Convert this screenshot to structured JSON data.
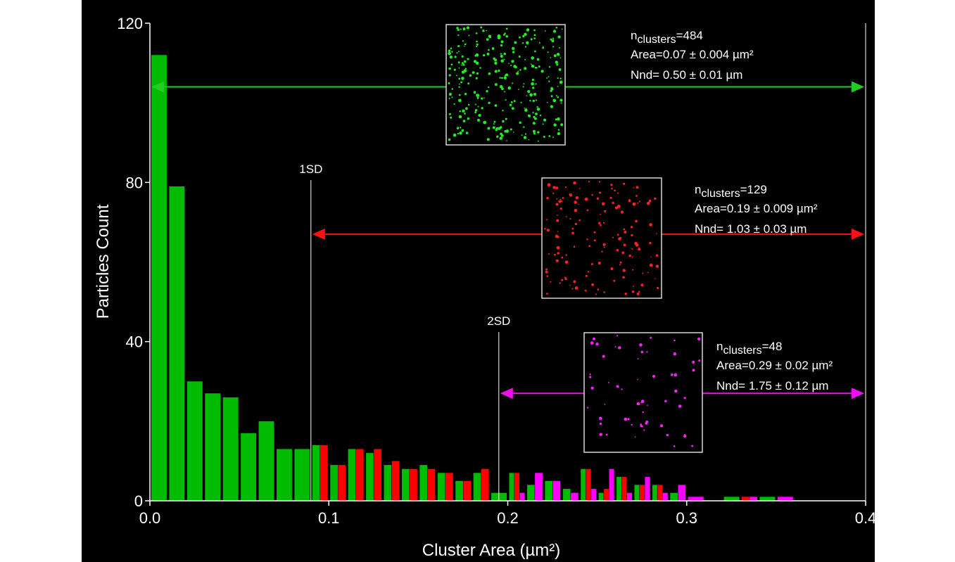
{
  "chart_data": {
    "type": "bar",
    "xlabel": "Cluster Area (µm²)",
    "ylabel": "Particles Count",
    "xlim": [
      0,
      0.4
    ],
    "ylim": [
      0,
      120
    ],
    "x_ticks": [
      "0.0",
      "0.1",
      "0.2",
      "0.3",
      "0.4"
    ],
    "y_ticks": [
      "0",
      "40",
      "80",
      "120"
    ],
    "bin_width": 0.01,
    "series": [
      {
        "color": "#00bb00",
        "bins": [
          {
            "x": 0.0,
            "y": 112
          },
          {
            "x": 0.01,
            "y": 79
          },
          {
            "x": 0.02,
            "y": 30
          },
          {
            "x": 0.03,
            "y": 27
          },
          {
            "x": 0.04,
            "y": 26
          },
          {
            "x": 0.05,
            "y": 17
          },
          {
            "x": 0.06,
            "y": 20
          },
          {
            "x": 0.07,
            "y": 13
          },
          {
            "x": 0.08,
            "y": 13
          },
          {
            "x": 0.09,
            "y": 14
          },
          {
            "x": 0.1,
            "y": 9
          },
          {
            "x": 0.11,
            "y": 13
          },
          {
            "x": 0.12,
            "y": 12
          },
          {
            "x": 0.13,
            "y": 9
          },
          {
            "x": 0.14,
            "y": 8
          },
          {
            "x": 0.15,
            "y": 9
          },
          {
            "x": 0.16,
            "y": 7
          },
          {
            "x": 0.17,
            "y": 5
          },
          {
            "x": 0.18,
            "y": 7
          },
          {
            "x": 0.19,
            "y": 2
          },
          {
            "x": 0.2,
            "y": 7
          },
          {
            "x": 0.21,
            "y": 4
          },
          {
            "x": 0.22,
            "y": 5
          },
          {
            "x": 0.23,
            "y": 3
          },
          {
            "x": 0.24,
            "y": 8
          },
          {
            "x": 0.25,
            "y": 2
          },
          {
            "x": 0.26,
            "y": 6
          },
          {
            "x": 0.27,
            "y": 4
          },
          {
            "x": 0.28,
            "y": 4
          },
          {
            "x": 0.29,
            "y": 2
          },
          {
            "x": 0.32,
            "y": 1
          },
          {
            "x": 0.34,
            "y": 1
          }
        ]
      },
      {
        "color": "#ff0000",
        "bins": [
          {
            "x": 0.09,
            "y": 14
          },
          {
            "x": 0.1,
            "y": 9
          },
          {
            "x": 0.11,
            "y": 13
          },
          {
            "x": 0.12,
            "y": 13
          },
          {
            "x": 0.13,
            "y": 10
          },
          {
            "x": 0.14,
            "y": 8
          },
          {
            "x": 0.15,
            "y": 8
          },
          {
            "x": 0.16,
            "y": 7
          },
          {
            "x": 0.17,
            "y": 5
          },
          {
            "x": 0.18,
            "y": 8
          },
          {
            "x": 0.2,
            "y": 7
          },
          {
            "x": 0.24,
            "y": 8
          },
          {
            "x": 0.25,
            "y": 3
          },
          {
            "x": 0.26,
            "y": 6
          },
          {
            "x": 0.27,
            "y": 4
          },
          {
            "x": 0.28,
            "y": 4
          },
          {
            "x": 0.33,
            "y": 1
          }
        ]
      },
      {
        "color": "#ff00ff",
        "bins": [
          {
            "x": 0.2,
            "y": 2
          },
          {
            "x": 0.21,
            "y": 7
          },
          {
            "x": 0.22,
            "y": 5
          },
          {
            "x": 0.23,
            "y": 2
          },
          {
            "x": 0.24,
            "y": 3
          },
          {
            "x": 0.25,
            "y": 8
          },
          {
            "x": 0.26,
            "y": 2
          },
          {
            "x": 0.27,
            "y": 6
          },
          {
            "x": 0.28,
            "y": 2
          },
          {
            "x": 0.29,
            "y": 4
          },
          {
            "x": 0.3,
            "y": 1
          },
          {
            "x": 0.33,
            "y": 1
          },
          {
            "x": 0.35,
            "y": 1
          }
        ]
      }
    ],
    "reference_lines": [
      {
        "x": 0.4,
        "label": ""
      },
      {
        "x": 0.09,
        "label": "1SD"
      },
      {
        "x": 0.195,
        "label": "2SD"
      }
    ],
    "range_arrows": [
      {
        "color": "#22cc22",
        "from": 0.0,
        "to": 0.4,
        "y": 104
      },
      {
        "color": "#ff1111",
        "from": 0.09,
        "to": 0.4,
        "y": 67
      },
      {
        "color": "#ee11ee",
        "from": 0.195,
        "to": 0.4,
        "y": 27
      }
    ],
    "annotations": [
      {
        "n_prefix": "n",
        "n_sub": "clusters",
        "n_value": "=484",
        "area": "Area=0.07 ± 0.004 µm²",
        "nnd": "Nnd= 0.50 ± 0.01 µm"
      },
      {
        "n_prefix": "n",
        "n_sub": "clusters",
        "n_value": "=129",
        "area": "Area=0.19 ± 0.009 µm²",
        "nnd": "Nnd= 1.03 ± 0.03 µm"
      },
      {
        "n_prefix": "n",
        "n_sub": "clusters",
        "n_value": "=48",
        "area": "Area=0.29 ± 0.02 µm²",
        "nnd": "Nnd= 1.75 ± 0.12 µm"
      }
    ],
    "insets": [
      {
        "color": "#22ee22",
        "dots": 300
      },
      {
        "color": "#ff2222",
        "dots": 150
      },
      {
        "color": "#ff22ff",
        "dots": 60
      }
    ]
  }
}
